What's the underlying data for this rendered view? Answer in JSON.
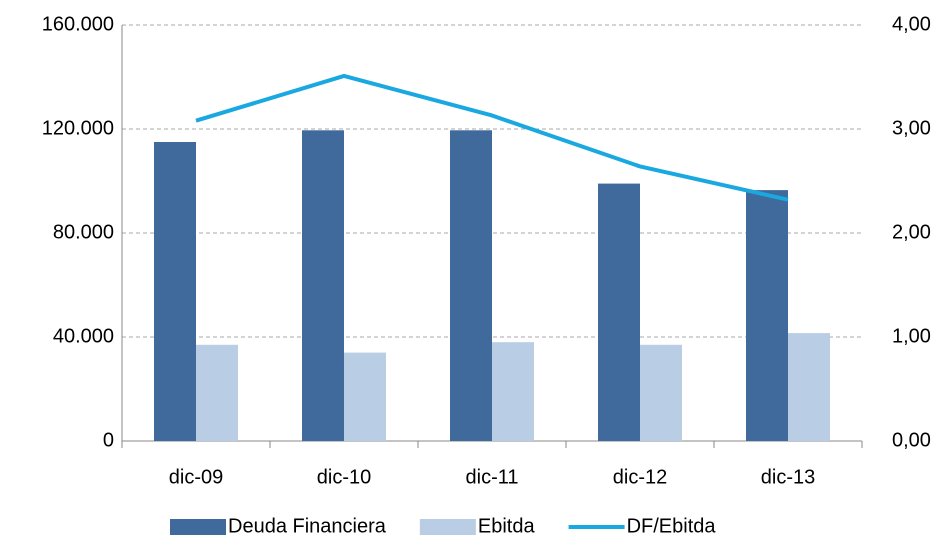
{
  "chart_data": {
    "type": "bar_line",
    "categories": [
      "dic-09",
      "dic-10",
      "dic-11",
      "dic-12",
      "dic-13"
    ],
    "series": [
      {
        "name": "Deuda Financiera",
        "color": "#3f6a9b",
        "type": "bar",
        "values": [
          115000,
          119500,
          119500,
          99000,
          96500
        ]
      },
      {
        "name": "Ebitda",
        "color": "#b9cde5",
        "type": "bar",
        "values": [
          37000,
          34000,
          38000,
          37000,
          41500
        ]
      },
      {
        "name": "DF/Ebitda",
        "color": "#1aa8e0",
        "type": "line",
        "axis": "y2",
        "values": [
          3.08,
          3.51,
          3.13,
          2.64,
          2.32
        ]
      }
    ],
    "ylim": [
      0,
      160000
    ],
    "yticks": [
      0,
      {
        "value": 40000,
        "label": "40.000"
      },
      {
        "value": 80000,
        "label": "80.000"
      },
      {
        "value": 120000,
        "label": "120.000"
      },
      {
        "value": 160000,
        "label": "160.000"
      }
    ],
    "y2lim": [
      0,
      4
    ],
    "y2ticks": [
      {
        "value": 0,
        "label": "0,00"
      },
      {
        "value": 1,
        "label": "1,00"
      },
      {
        "value": 2,
        "label": "2,00"
      },
      {
        "value": 3,
        "label": "3,00"
      },
      {
        "value": 4,
        "label": "4,00"
      }
    ],
    "grid": true,
    "legend": "bottom"
  }
}
